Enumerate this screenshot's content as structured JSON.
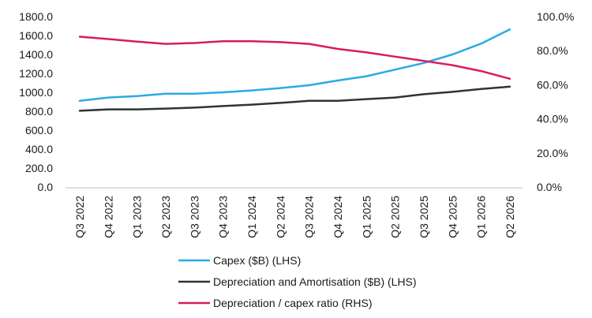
{
  "chart_data": {
    "type": "line",
    "categories": [
      "Q3 2022",
      "Q4 2022",
      "Q1 2023",
      "Q2 2023",
      "Q3 2023",
      "Q4 2023",
      "Q1 2024",
      "Q2 2024",
      "Q3 2024",
      "Q4 2024",
      "Q1 2025",
      "Q2 2025",
      "Q3 2025",
      "Q4 2025",
      "Q1 2026",
      "Q2 2026"
    ],
    "y_left": {
      "ylim": [
        0,
        1800
      ],
      "ticks": [
        "0.0",
        "200.0",
        "400.0",
        "600.0",
        "800.0",
        "1000.0",
        "1200.0",
        "1400.0",
        "1600.0",
        "1800.0"
      ]
    },
    "y_right": {
      "ylim": [
        0,
        100
      ],
      "ticks": [
        "0.0%",
        "20.0%",
        "40.0%",
        "60.0%",
        "80.0%",
        "100.0%"
      ]
    },
    "series": [
      {
        "name": "Capex ($B) (LHS)",
        "axis": "left",
        "color": "#29abe2",
        "values": [
          910,
          945,
          960,
          985,
          985,
          1000,
          1020,
          1045,
          1075,
          1125,
          1170,
          1240,
          1310,
          1400,
          1515,
          1665
        ]
      },
      {
        "name": "Depreciation and Amortisation ($B) (LHS)",
        "axis": "left",
        "color": "#2d3436",
        "values": [
          805,
          820,
          820,
          828,
          838,
          855,
          870,
          888,
          910,
          910,
          928,
          945,
          980,
          1005,
          1035,
          1060
        ]
      },
      {
        "name": "Depreciation / capex ratio (RHS)",
        "axis": "right",
        "color": "#d81b60",
        "values": [
          88.2,
          86.8,
          85.3,
          84.0,
          84.5,
          85.5,
          85.5,
          85.0,
          84.0,
          81.0,
          79.0,
          76.5,
          74.0,
          71.5,
          68.0,
          63.5
        ]
      }
    ],
    "legend_placement": "bottom",
    "grid": false
  }
}
